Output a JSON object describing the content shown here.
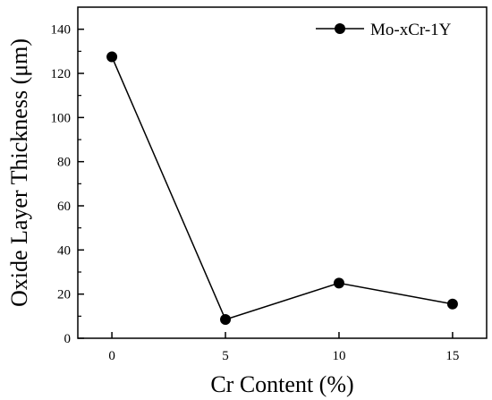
{
  "chart_data": {
    "type": "line",
    "xlabel": "Cr Content (%)",
    "ylabel": "Oxide Layer Thickness (μm)",
    "x": [
      0,
      5,
      10,
      15
    ],
    "series": [
      {
        "name": "Mo-xCr-1Y",
        "values": [
          127.5,
          8.5,
          25,
          15.5
        ]
      }
    ],
    "xlim": [
      -1.5,
      16.5
    ],
    "ylim": [
      0,
      150
    ],
    "xticks": [
      0,
      5,
      10,
      15
    ],
    "yticks": [
      0,
      20,
      40,
      60,
      80,
      100,
      120,
      140
    ],
    "xtick_labels": [
      "0",
      "5",
      "10",
      "15"
    ],
    "ytick_labels": [
      "0",
      "20",
      "40",
      "60",
      "80",
      "100",
      "120",
      "140"
    ],
    "legend_position": "top-right",
    "grid": false,
    "line_color": "#000000",
    "marker": "filled-circle"
  }
}
